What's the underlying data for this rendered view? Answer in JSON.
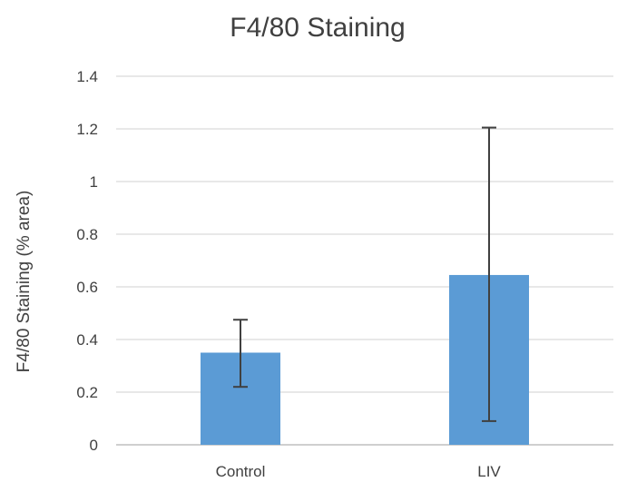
{
  "chart_data": {
    "type": "bar",
    "title": "F4/80 Staining",
    "xlabel": "",
    "ylabel": "F4/80 Staining (% area)",
    "categories": [
      "Control",
      "LIV"
    ],
    "values": [
      0.35,
      0.645
    ],
    "error_low": [
      0.22,
      0.09
    ],
    "error_high": [
      0.475,
      1.205
    ],
    "ylim": [
      0,
      1.4
    ],
    "yticks": [
      0,
      0.2,
      0.4,
      0.6,
      0.8,
      1,
      1.2,
      1.4
    ],
    "ytick_labels": [
      "0",
      "0.2",
      "0.4",
      "0.6",
      "0.8",
      "1",
      "1.2",
      "1.4"
    ],
    "grid": true,
    "legend": "none",
    "bar_color": "#5b9bd5",
    "text_color": "#404040",
    "grid_color": "#d9d9d9"
  }
}
